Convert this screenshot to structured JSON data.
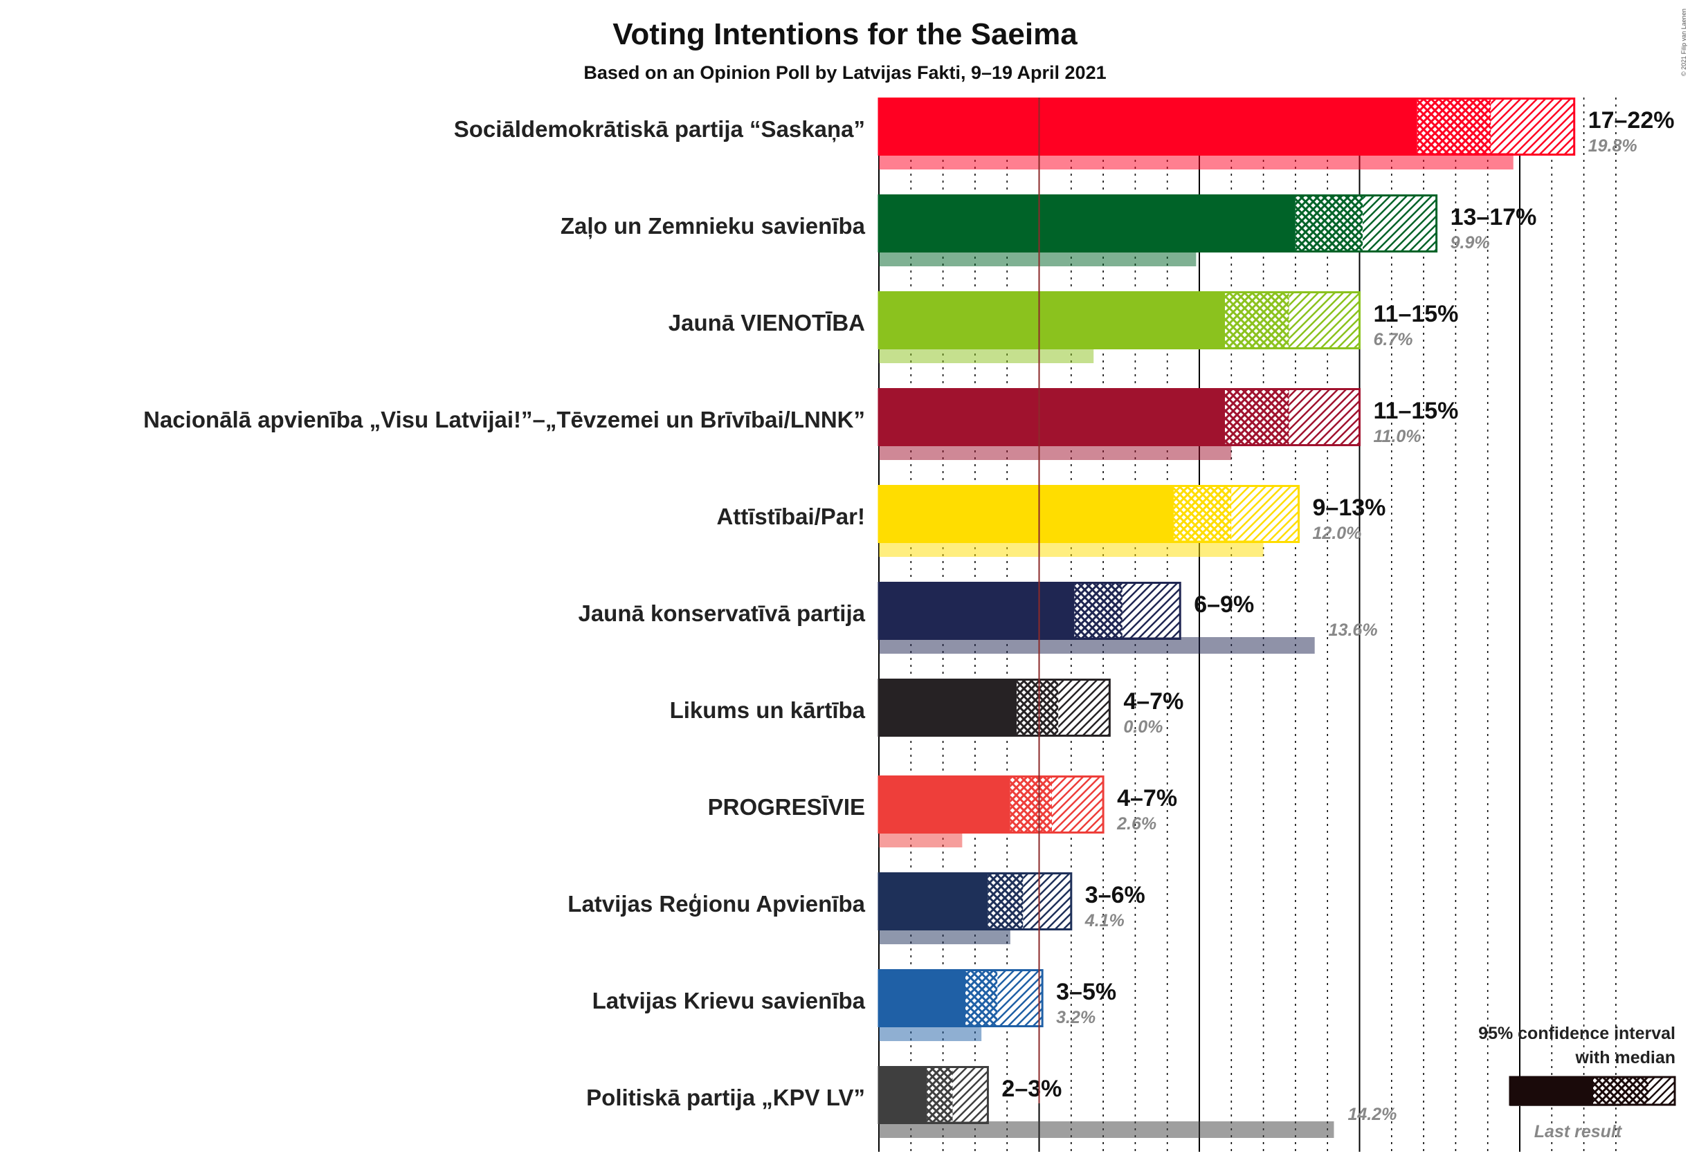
{
  "chart_data": {
    "type": "bar",
    "orientation": "horizontal",
    "title": "Voting Intentions for the Saeima",
    "subtitle": "Based on an Opinion Poll by Latvijas Fakti, 9–19 April 2021",
    "copyright": "© 2021 Filip van Laenen",
    "threshold_percent": 5,
    "xlim": [
      0,
      23
    ],
    "grid_major_step": 5,
    "grid_minor_step": 1,
    "legend": {
      "title_line1": "95% confidence interval",
      "title_line2": "with median",
      "last_result_label": "Last result",
      "placement": "bottom-right"
    },
    "series": [
      {
        "name": "Sociāldemokrātiskā partija “Saskaņa”",
        "color": "#FF0022",
        "low": 16.8,
        "median": 19.1,
        "high": 21.7,
        "range_label": "17–22%",
        "last_result": 19.8,
        "last_label": "19.8%"
      },
      {
        "name": "Zaļo un Zemnieku savienība",
        "color": "#006328",
        "low": 13.0,
        "median": 15.1,
        "high": 17.4,
        "range_label": "13–17%",
        "last_result": 9.9,
        "last_label": "9.9%"
      },
      {
        "name": "Jaunā VIENOTĪBA",
        "color": "#8BC21E",
        "low": 10.8,
        "median": 12.8,
        "high": 15.0,
        "range_label": "11–15%",
        "last_result": 6.7,
        "last_label": "6.7%"
      },
      {
        "name": "Nacionālā apvienība „Visu Latvijai!”–„Tēvzemei un Brīvībai/LNNK”",
        "color": "#A0122E",
        "low": 10.8,
        "median": 12.8,
        "high": 15.0,
        "range_label": "11–15%",
        "last_result": 11.0,
        "last_label": "11.0%"
      },
      {
        "name": "Attīstībai/Par!",
        "color": "#FFDD00",
        "low": 9.2,
        "median": 11.0,
        "high": 13.1,
        "range_label": "9–13%",
        "last_result": 12.0,
        "last_label": "12.0%"
      },
      {
        "name": "Jaunā konservatīvā partija",
        "color": "#1F2652",
        "low": 6.1,
        "median": 7.6,
        "high": 9.4,
        "range_label": "6–9%",
        "last_result": 13.6,
        "last_label": "13.6%"
      },
      {
        "name": "Likums un kārtība",
        "color": "#262224",
        "low": 4.3,
        "median": 5.6,
        "high": 7.2,
        "range_label": "4–7%",
        "last_result": 0.0,
        "last_label": "0.0%"
      },
      {
        "name": "PROGRESĪVIE",
        "color": "#EE3E3A",
        "low": 4.1,
        "median": 5.4,
        "high": 7.0,
        "range_label": "4–7%",
        "last_result": 2.6,
        "last_label": "2.6%"
      },
      {
        "name": "Latvijas Reģionu Apvienība",
        "color": "#1E3059",
        "low": 3.4,
        "median": 4.5,
        "high": 6.0,
        "range_label": "3–6%",
        "last_result": 4.1,
        "last_label": "4.1%"
      },
      {
        "name": "Latvijas Krievu savienība",
        "color": "#1F60A6",
        "low": 2.7,
        "median": 3.7,
        "high": 5.1,
        "range_label": "3–5%",
        "last_result": 3.2,
        "last_label": "3.2%"
      },
      {
        "name": "Politiskā partija „KPV LV”",
        "color": "#3F3F3F",
        "low": 1.5,
        "median": 2.3,
        "high": 3.4,
        "range_label": "2–3%",
        "last_result": 14.2,
        "last_label": "14.2%"
      }
    ]
  }
}
